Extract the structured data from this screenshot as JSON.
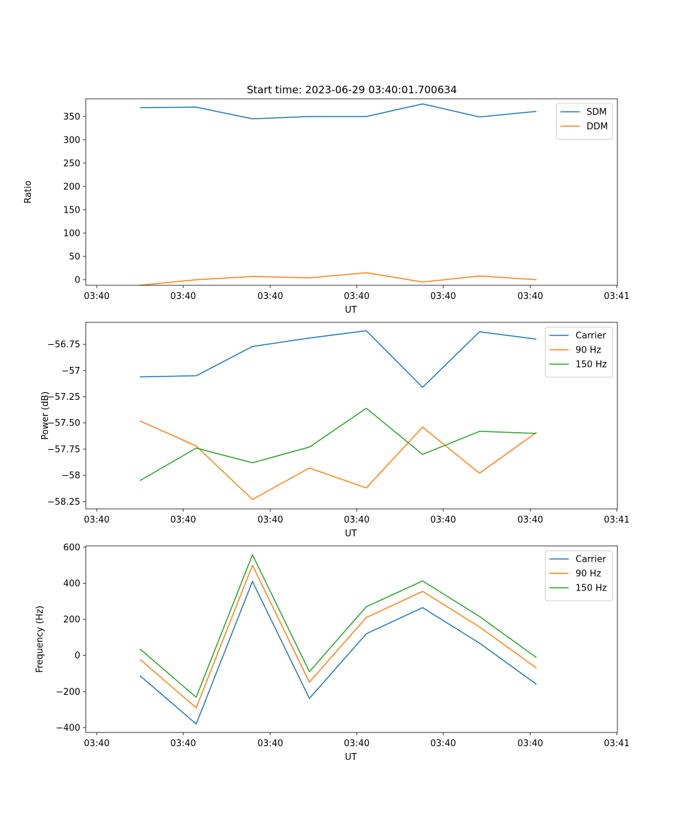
{
  "title": "Start time: 2023-06-29 03:40:01.700634",
  "colors": {
    "blue": "#1f77b4",
    "orange": "#ff7f0e",
    "green": "#2ca02c"
  },
  "chart_data": [
    {
      "type": "line",
      "xlabel": "UT",
      "ylabel": "Ratio",
      "x_ticks": [
        "03:40",
        "03:40",
        "03:40",
        "03:40",
        "03:40",
        "03:40",
        "03:41"
      ],
      "ylim": [
        -12,
        388
      ],
      "yticks": [
        0,
        50,
        100,
        150,
        200,
        250,
        300,
        350
      ],
      "legend_position": "top-right",
      "series": [
        {
          "name": "SDM",
          "color": "#1f77b4",
          "values": [
            369,
            370,
            345,
            350,
            350,
            377,
            349,
            361
          ]
        },
        {
          "name": "DDM",
          "color": "#ff7f0e",
          "values": [
            -12,
            0,
            7,
            4,
            15,
            -5,
            8,
            0
          ]
        }
      ]
    },
    {
      "type": "line",
      "xlabel": "UT",
      "ylabel": "Power (dB)",
      "x_ticks": [
        "03:40",
        "03:40",
        "03:40",
        "03:40",
        "03:40",
        "03:40",
        "03:41"
      ],
      "ylim": [
        -58.32,
        -56.54
      ],
      "yticks": [
        -58.25,
        -58.0,
        -57.75,
        -57.5,
        -57.25,
        -57.0,
        -56.75
      ],
      "legend_position": "top-right",
      "series": [
        {
          "name": "Carrier",
          "color": "#1f77b4",
          "values": [
            -57.06,
            -57.05,
            -56.77,
            -56.69,
            -56.62,
            -57.16,
            -56.63,
            -56.7
          ]
        },
        {
          "name": "90 Hz",
          "color": "#ff7f0e",
          "values": [
            -57.48,
            -57.72,
            -58.23,
            -57.93,
            -58.12,
            -57.54,
            -57.98,
            -57.59
          ]
        },
        {
          "name": "150 Hz",
          "color": "#2ca02c",
          "values": [
            -58.05,
            -57.74,
            -57.88,
            -57.73,
            -57.36,
            -57.8,
            -57.58,
            -57.6
          ]
        }
      ]
    },
    {
      "type": "line",
      "xlabel": "UT",
      "ylabel": "Frequency (Hz)",
      "x_ticks": [
        "03:40",
        "03:40",
        "03:40",
        "03:40",
        "03:40",
        "03:40",
        "03:41"
      ],
      "ylim": [
        -427,
        607
      ],
      "yticks": [
        -400,
        -200,
        0,
        200,
        400,
        600
      ],
      "legend_position": "top-right",
      "series": [
        {
          "name": "Carrier",
          "color": "#1f77b4",
          "values": [
            -112,
            -380,
            410,
            -238,
            120,
            265,
            68,
            -160
          ]
        },
        {
          "name": "90 Hz",
          "color": "#ff7f0e",
          "values": [
            -22,
            -290,
            500,
            -148,
            210,
            355,
            158,
            -70
          ]
        },
        {
          "name": "150 Hz",
          "color": "#2ca02c",
          "values": [
            36,
            -232,
            558,
            -90,
            270,
            413,
            216,
            -12
          ]
        }
      ]
    }
  ]
}
